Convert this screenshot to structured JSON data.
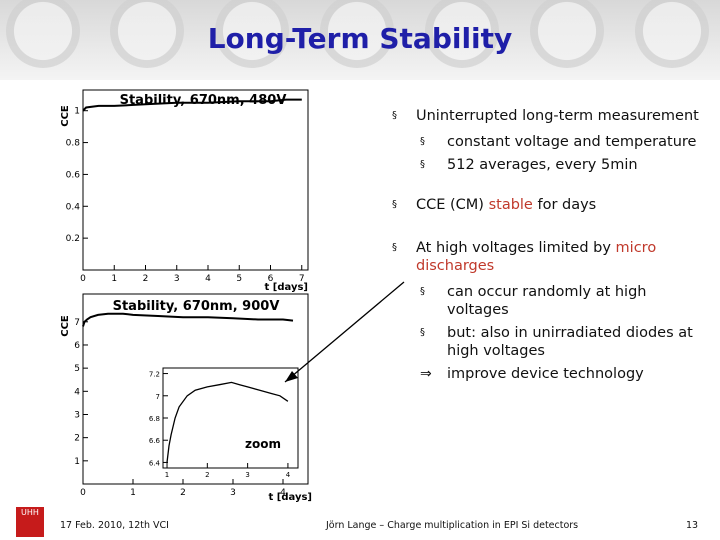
{
  "slide": {
    "title": "Long-Term Stability",
    "page_number": "13"
  },
  "bullets": {
    "b1": "Uninterrupted long-term measurement",
    "b1_sub1": "constant voltage and temperature",
    "b1_sub2": "512 averages, every 5min",
    "b2_pre": "CCE (CM) ",
    "b2_red": "stable",
    "b2_post": " for days",
    "b3_pre": "At high voltages limited by ",
    "b3_red": "micro discharges",
    "b3_sub1": "can occur randomly at high voltages",
    "b3_sub2": "but: also in unirradiated diodes at high voltages",
    "b3_conclusion": "improve device technology",
    "bullet_glyph": "§",
    "implies_glyph": "⇒"
  },
  "footer": {
    "date": "17 Feb. 2010,  12th VCI",
    "author": "Jörn Lange – Charge multiplication in EPI Si detectors",
    "logo_text": "UHH"
  },
  "chart_data": [
    {
      "type": "line",
      "title": "Stability, 670nm, 480V",
      "xlabel": "t [days]",
      "ylabel": "CCE",
      "xlim": [
        0,
        7.2
      ],
      "ylim": [
        0,
        1.13
      ],
      "xticks": [
        0,
        1,
        2,
        3,
        4,
        5,
        6,
        7
      ],
      "yticks": [
        0.2,
        0.4,
        0.6,
        0.8,
        1
      ],
      "ytick_labels": [
        "0.2",
        "0.4",
        "0.6",
        "0.8",
        "1"
      ],
      "series": [
        {
          "x": [
            0,
            0.1,
            0.5,
            1,
            2,
            3,
            4,
            5,
            6,
            6.5,
            7
          ],
          "y": [
            1.0,
            1.02,
            1.03,
            1.03,
            1.04,
            1.05,
            1.05,
            1.06,
            1.06,
            1.07,
            1.07
          ]
        }
      ]
    },
    {
      "type": "line",
      "title": "Stability, 670nm, 900V",
      "xlabel": "t [days]",
      "ylabel": "CCE",
      "xlim": [
        0,
        4.5
      ],
      "ylim": [
        0,
        8.2
      ],
      "xticks": [
        0,
        1,
        2,
        3,
        4
      ],
      "yticks": [
        1,
        2,
        3,
        4,
        5,
        6,
        7
      ],
      "ytick_labels": [
        "1",
        "2",
        "3",
        "4",
        "5",
        "6",
        "7"
      ],
      "series": [
        {
          "x": [
            0,
            0.03,
            0.08,
            0.15,
            0.3,
            0.5,
            0.8,
            1.0,
            1.5,
            2.0,
            2.5,
            3.0,
            3.5,
            4.0,
            4.2
          ],
          "y": [
            6.8,
            7.0,
            7.1,
            7.2,
            7.3,
            7.35,
            7.35,
            7.3,
            7.25,
            7.2,
            7.2,
            7.15,
            7.1,
            7.1,
            7.05
          ]
        }
      ],
      "inset": {
        "label": "zoom",
        "xlim": [
          0.9,
          4.25
        ],
        "ylim": [
          6.35,
          7.25
        ],
        "xticks": [
          1,
          2,
          3,
          4
        ],
        "yticks": [
          6.4,
          6.6,
          6.8,
          7,
          7.2
        ],
        "ytick_labels": [
          "6.4",
          "6.6",
          "6.8",
          "7",
          "7.2"
        ],
        "series": [
          {
            "x": [
              1.0,
              1.05,
              1.1,
              1.2,
              1.3,
              1.5,
              1.7,
              2.0,
              2.3,
              2.6,
              2.8,
              3.0,
              3.3,
              3.6,
              3.8,
              4.0
            ],
            "y": [
              6.4,
              6.55,
              6.65,
              6.8,
              6.9,
              7.0,
              7.05,
              7.08,
              7.1,
              7.12,
              7.1,
              7.08,
              7.05,
              7.02,
              7.0,
              6.95
            ]
          }
        ]
      }
    }
  ]
}
